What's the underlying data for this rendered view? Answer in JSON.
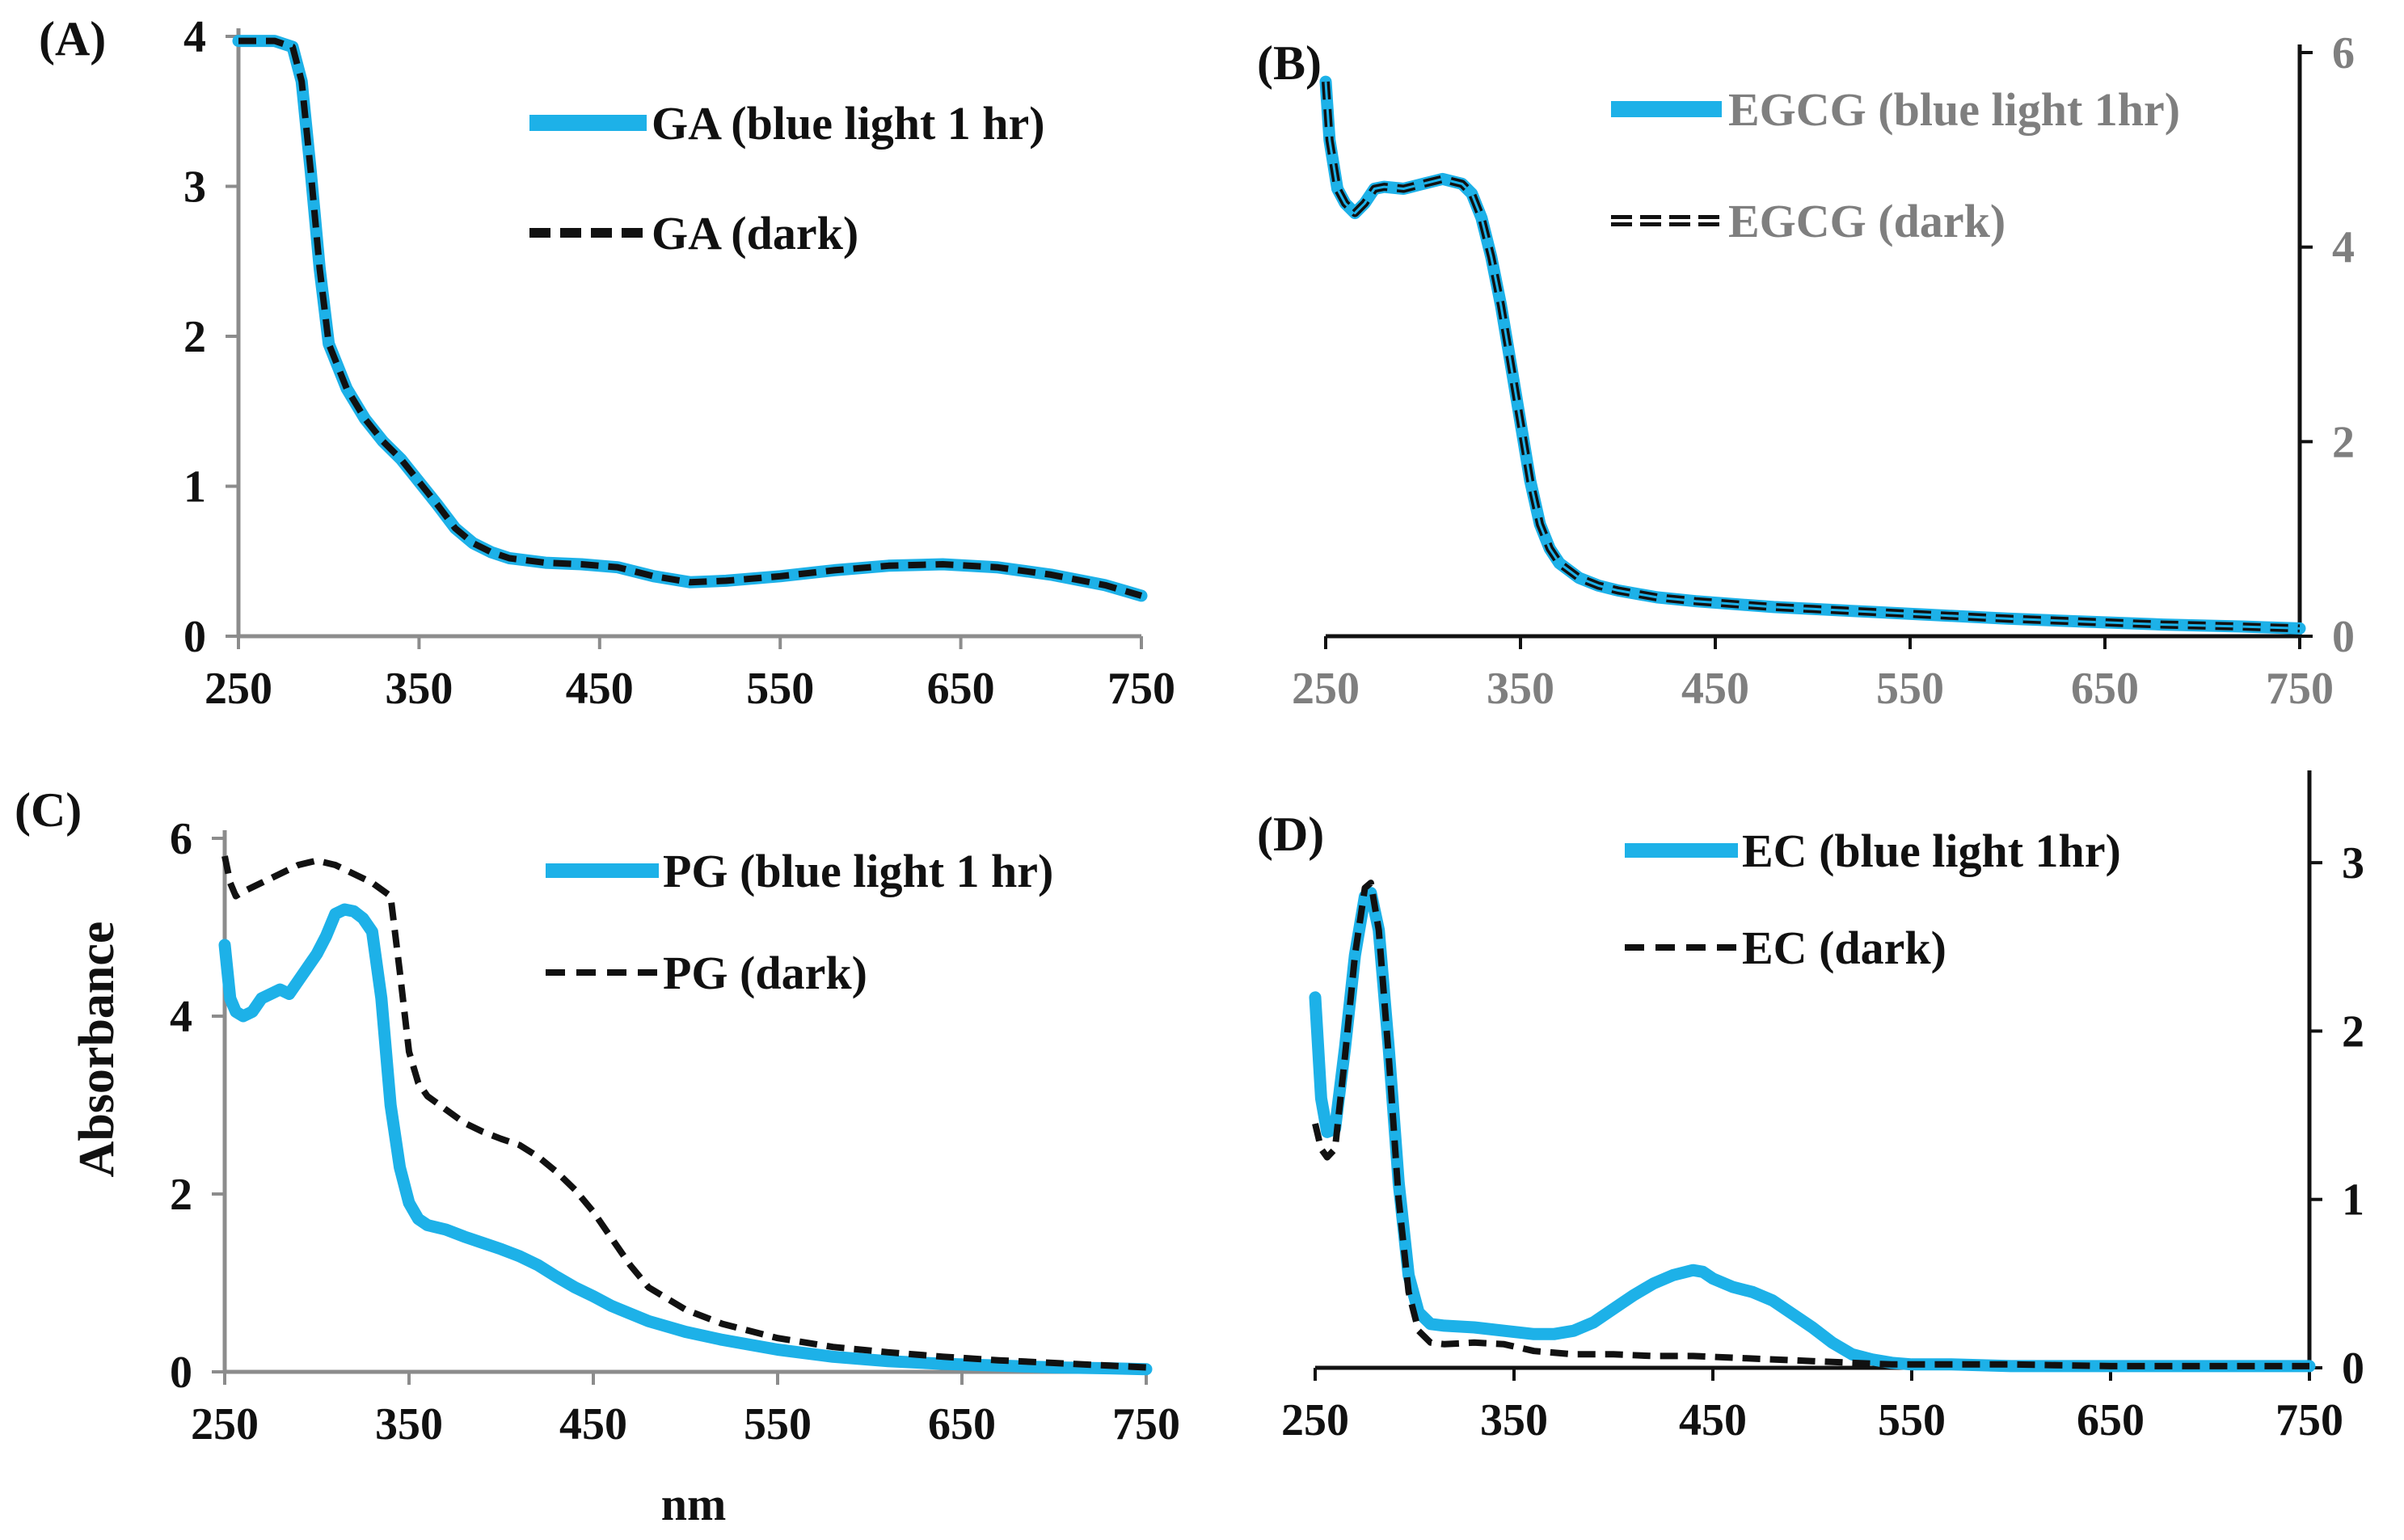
{
  "figure": {
    "ylabel": "Absorbance",
    "xlabel": "nm"
  },
  "colors": {
    "light_series": "#1db1e8",
    "dark_series": "#111111",
    "axis_gray": "#8c8c8c",
    "axis_black": "#111111",
    "text_black": "#111111",
    "text_gray": "#7f7f7f"
  },
  "chart_data": [
    {
      "type": "line",
      "panel_label": "(A)",
      "xlabel": "",
      "ylabel": "",
      "xlim": [
        250,
        750
      ],
      "ylim": [
        0,
        4
      ],
      "xticks": [
        "250",
        "350",
        "450",
        "550",
        "650",
        "750"
      ],
      "yticks": [
        "0",
        "1",
        "2",
        "3",
        "4"
      ],
      "yaxis_side": "left",
      "series": [
        {
          "name": "GA (blue light 1 hr)",
          "style": "light",
          "x": [
            250,
            260,
            270,
            280,
            285,
            290,
            295,
            300,
            310,
            320,
            330,
            340,
            350,
            360,
            370,
            380,
            390,
            400,
            420,
            440,
            460,
            480,
            500,
            520,
            550,
            580,
            610,
            640,
            670,
            700,
            730,
            750
          ],
          "y": [
            3.97,
            3.97,
            3.97,
            3.93,
            3.7,
            3.1,
            2.45,
            1.95,
            1.65,
            1.45,
            1.3,
            1.18,
            1.03,
            0.88,
            0.72,
            0.62,
            0.56,
            0.52,
            0.49,
            0.48,
            0.46,
            0.4,
            0.36,
            0.37,
            0.4,
            0.44,
            0.47,
            0.48,
            0.46,
            0.41,
            0.34,
            0.27
          ]
        },
        {
          "name": "GA (dark)",
          "style": "dark",
          "x": [
            250,
            260,
            270,
            280,
            285,
            290,
            295,
            300,
            310,
            320,
            330,
            340,
            350,
            360,
            370,
            380,
            390,
            400,
            420,
            440,
            460,
            480,
            500,
            520,
            550,
            580,
            610,
            640,
            670,
            700,
            730,
            750
          ],
          "y": [
            3.97,
            3.97,
            3.97,
            3.93,
            3.7,
            3.1,
            2.45,
            1.95,
            1.65,
            1.45,
            1.3,
            1.18,
            1.03,
            0.88,
            0.72,
            0.62,
            0.56,
            0.52,
            0.49,
            0.48,
            0.46,
            0.4,
            0.36,
            0.37,
            0.4,
            0.44,
            0.47,
            0.48,
            0.46,
            0.41,
            0.34,
            0.27
          ]
        }
      ]
    },
    {
      "type": "line",
      "panel_label": "(B)",
      "xlabel": "",
      "ylabel": "",
      "xlim": [
        250,
        750
      ],
      "ylim": [
        0,
        6
      ],
      "xticks": [
        "250",
        "350",
        "450",
        "550",
        "650",
        "750"
      ],
      "yticks": [
        "0",
        "2",
        "4",
        "6"
      ],
      "yaxis_side": "right",
      "series": [
        {
          "name": "EGCG (blue light 1hr)",
          "style": "light",
          "x": [
            250,
            252,
            256,
            260,
            265,
            270,
            275,
            280,
            290,
            300,
            310,
            320,
            325,
            330,
            335,
            340,
            345,
            350,
            355,
            360,
            365,
            370,
            380,
            390,
            400,
            420,
            440,
            460,
            480,
            500,
            530,
            560,
            600,
            640,
            680,
            720,
            750
          ],
          "y": [
            5.7,
            5.1,
            4.6,
            4.45,
            4.35,
            4.45,
            4.6,
            4.62,
            4.6,
            4.65,
            4.7,
            4.65,
            4.55,
            4.3,
            3.9,
            3.4,
            2.8,
            2.2,
            1.6,
            1.15,
            0.9,
            0.75,
            0.6,
            0.52,
            0.47,
            0.4,
            0.36,
            0.33,
            0.3,
            0.28,
            0.25,
            0.22,
            0.18,
            0.15,
            0.12,
            0.1,
            0.08
          ]
        },
        {
          "name": "EGCG (dark)",
          "style": "dark",
          "x": [
            250,
            252,
            256,
            260,
            265,
            270,
            275,
            280,
            290,
            300,
            310,
            320,
            325,
            330,
            335,
            340,
            345,
            350,
            355,
            360,
            365,
            370,
            380,
            390,
            400,
            420,
            440,
            460,
            480,
            500,
            530,
            560,
            600,
            640,
            680,
            720,
            750
          ],
          "y": [
            5.7,
            5.1,
            4.6,
            4.45,
            4.35,
            4.45,
            4.6,
            4.62,
            4.6,
            4.65,
            4.7,
            4.65,
            4.55,
            4.3,
            3.9,
            3.4,
            2.8,
            2.2,
            1.6,
            1.15,
            0.9,
            0.75,
            0.6,
            0.52,
            0.47,
            0.4,
            0.36,
            0.33,
            0.3,
            0.28,
            0.25,
            0.22,
            0.18,
            0.15,
            0.12,
            0.1,
            0.08
          ]
        }
      ]
    },
    {
      "type": "line",
      "panel_label": "(C)",
      "xlabel": "nm",
      "ylabel": "Absorbance",
      "xlim": [
        250,
        750
      ],
      "ylim": [
        0,
        6
      ],
      "xticks": [
        "250",
        "350",
        "450",
        "550",
        "650",
        "750"
      ],
      "yticks": [
        "0",
        "2",
        "4",
        "6"
      ],
      "yaxis_side": "left",
      "series": [
        {
          "name": "PG (blue light 1 hr)",
          "style": "light",
          "x": [
            250,
            253,
            256,
            260,
            265,
            270,
            275,
            280,
            285,
            290,
            300,
            305,
            310,
            315,
            320,
            325,
            330,
            335,
            340,
            345,
            350,
            355,
            360,
            370,
            380,
            390,
            400,
            410,
            420,
            430,
            440,
            450,
            460,
            480,
            500,
            520,
            550,
            580,
            610,
            640,
            670,
            700,
            730,
            750
          ],
          "y": [
            4.8,
            4.2,
            4.05,
            4.0,
            4.05,
            4.2,
            4.25,
            4.3,
            4.25,
            4.4,
            4.7,
            4.9,
            5.15,
            5.2,
            5.18,
            5.1,
            4.95,
            4.2,
            3.0,
            2.3,
            1.9,
            1.72,
            1.65,
            1.6,
            1.52,
            1.45,
            1.38,
            1.3,
            1.2,
            1.07,
            0.95,
            0.85,
            0.74,
            0.57,
            0.45,
            0.36,
            0.25,
            0.17,
            0.12,
            0.09,
            0.07,
            0.05,
            0.04,
            0.03
          ]
        },
        {
          "name": "PG (dark)",
          "style": "dark",
          "x": [
            250,
            253,
            256,
            260,
            265,
            270,
            280,
            290,
            300,
            310,
            320,
            330,
            340,
            345,
            350,
            355,
            360,
            370,
            380,
            390,
            400,
            410,
            420,
            430,
            440,
            450,
            460,
            470,
            480,
            500,
            520,
            550,
            580,
            610,
            640,
            670,
            700,
            730,
            750
          ],
          "y": [
            5.8,
            5.5,
            5.35,
            5.4,
            5.45,
            5.5,
            5.6,
            5.7,
            5.75,
            5.7,
            5.6,
            5.5,
            5.35,
            4.5,
            3.6,
            3.25,
            3.1,
            2.95,
            2.8,
            2.7,
            2.62,
            2.55,
            2.42,
            2.25,
            2.05,
            1.8,
            1.5,
            1.2,
            0.95,
            0.7,
            0.54,
            0.38,
            0.28,
            0.22,
            0.17,
            0.13,
            0.1,
            0.07,
            0.05
          ]
        }
      ]
    },
    {
      "type": "line",
      "panel_label": "(D)",
      "xlabel": "",
      "ylabel": "",
      "xlim": [
        250,
        750
      ],
      "ylim": [
        0,
        3.5
      ],
      "xticks": [
        "250",
        "350",
        "450",
        "550",
        "650",
        "750"
      ],
      "yticks": [
        "0",
        "1",
        "2",
        "3"
      ],
      "yaxis_side": "right",
      "series": [
        {
          "name": "EC (blue light 1hr)",
          "style": "light",
          "x": [
            250,
            253,
            256,
            260,
            265,
            270,
            275,
            278,
            282,
            287,
            292,
            297,
            302,
            308,
            315,
            330,
            345,
            360,
            370,
            380,
            390,
            400,
            410,
            420,
            430,
            440,
            445,
            450,
            460,
            470,
            480,
            490,
            500,
            510,
            520,
            530,
            540,
            550,
            570,
            600,
            650,
            700,
            750
          ],
          "y": [
            2.2,
            1.6,
            1.4,
            1.42,
            1.9,
            2.45,
            2.8,
            2.82,
            2.6,
            1.9,
            1.1,
            0.55,
            0.33,
            0.26,
            0.25,
            0.24,
            0.22,
            0.2,
            0.2,
            0.22,
            0.27,
            0.35,
            0.43,
            0.5,
            0.55,
            0.58,
            0.57,
            0.53,
            0.48,
            0.45,
            0.4,
            0.32,
            0.24,
            0.15,
            0.08,
            0.05,
            0.03,
            0.02,
            0.02,
            0.01,
            0.01,
            0.01,
            0.01
          ]
        },
        {
          "name": "EC (dark)",
          "style": "dark",
          "x": [
            250,
            253,
            256,
            260,
            265,
            270,
            275,
            278,
            282,
            287,
            292,
            297,
            302,
            308,
            315,
            330,
            345,
            360,
            380,
            400,
            420,
            440,
            460,
            480,
            500,
            520,
            540,
            560,
            600,
            650,
            700,
            750
          ],
          "y": [
            1.45,
            1.3,
            1.25,
            1.3,
            1.85,
            2.45,
            2.85,
            2.88,
            2.6,
            1.85,
            1.0,
            0.45,
            0.22,
            0.15,
            0.14,
            0.15,
            0.14,
            0.1,
            0.08,
            0.08,
            0.07,
            0.07,
            0.06,
            0.05,
            0.04,
            0.03,
            0.02,
            0.02,
            0.02,
            0.01,
            0.01,
            0.01
          ]
        }
      ]
    }
  ]
}
